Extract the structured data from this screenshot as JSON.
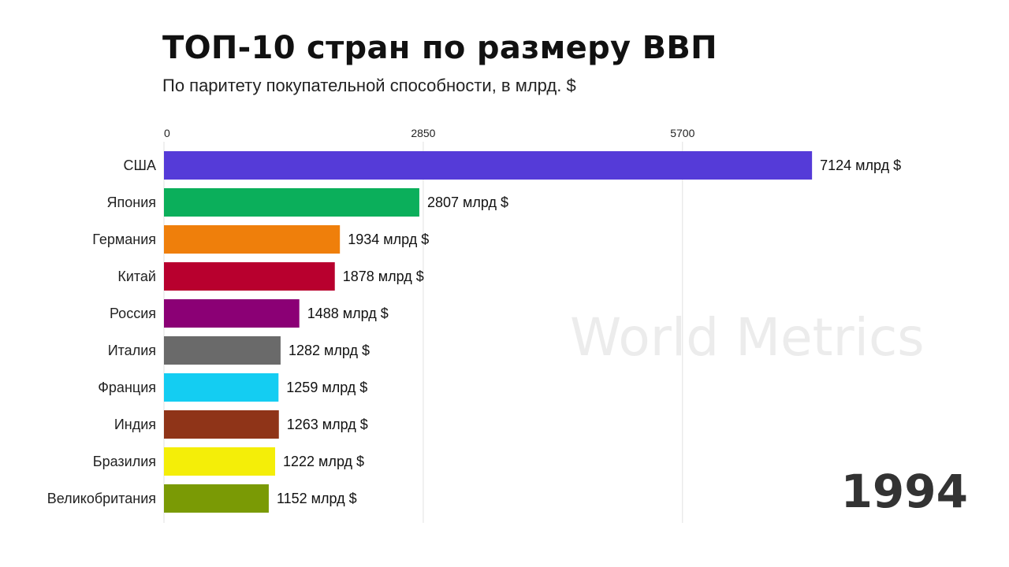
{
  "header": {
    "title": "ТОП-10 стран по размеру ВВП",
    "subtitle": "По паритету покупательной способности, в млрд. $"
  },
  "watermark": "World Metrics",
  "year": "1994",
  "chart_data": {
    "type": "bar",
    "orientation": "horizontal",
    "title": "ТОП-10 стран по размеру ВВП",
    "subtitle": "По паритету покупательной способности, в млрд. $",
    "categories": [
      "США",
      "Япония",
      "Германия",
      "Китай",
      "Россия",
      "Италия",
      "Франция",
      "Индия",
      "Бразилия",
      "Великобритания"
    ],
    "values": [
      7124,
      2807,
      1934,
      1878,
      1488,
      1282,
      1259,
      1263,
      1222,
      1152
    ],
    "value_labels": [
      "7124 млрд $",
      "2807 млрд $",
      "1934 млрд $",
      "1878 млрд $",
      "1488 млрд $",
      "1282 млрд $",
      "1259 млрд $",
      "1263 млрд $",
      "1222 млрд $",
      "1152 млрд $"
    ],
    "colors": [
      "#553bd8",
      "#0baf5b",
      "#ef7f0b",
      "#b8002e",
      "#8b0075",
      "#6a6a6a",
      "#14cdf2",
      "#8f3418",
      "#f4ee08",
      "#7a9a05"
    ],
    "x_ticks": [
      0,
      2850,
      5700
    ],
    "x_tick_labels": [
      "0",
      "2850",
      "5700"
    ],
    "xlim": [
      0,
      8050
    ],
    "axis_position": "top",
    "grid": true
  }
}
